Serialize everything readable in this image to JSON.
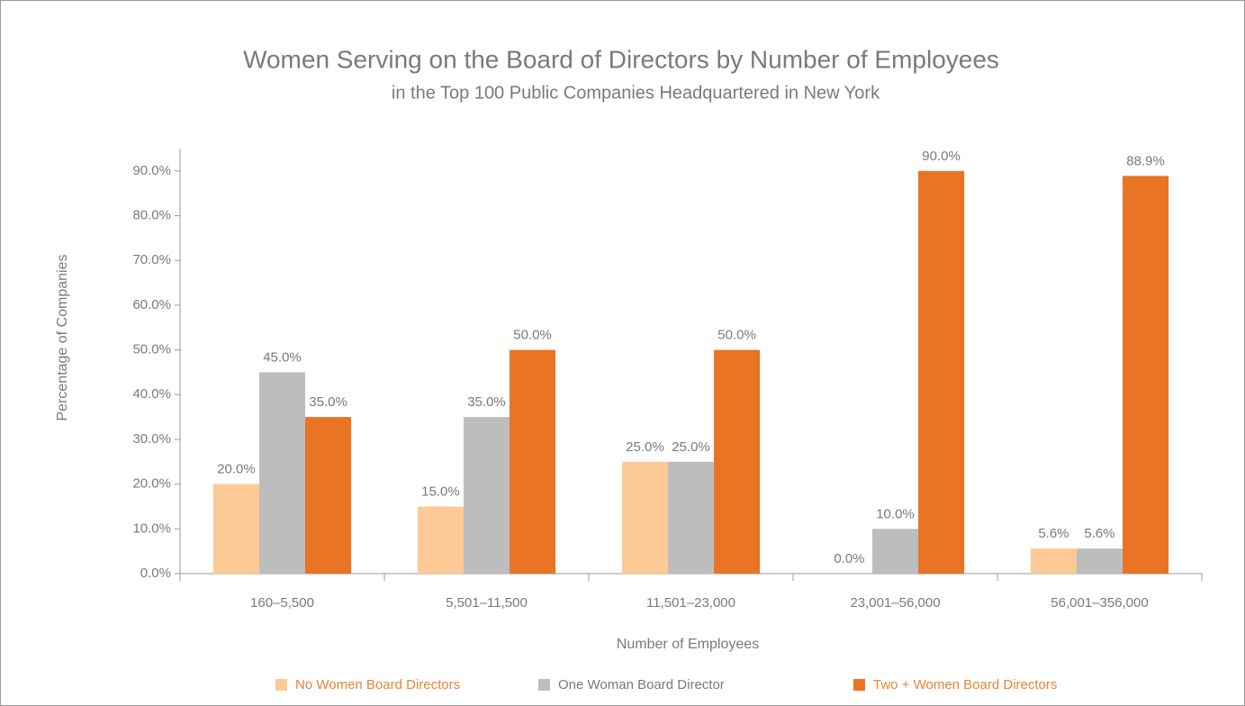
{
  "chart_data": {
    "type": "bar",
    "title": "Women Serving on the Board of Directors by Number of Employees",
    "subtitle": "in the Top 100 Public Companies Headquartered in New York",
    "x_label": "Number of Employees",
    "y_label": "Percentage of Companies",
    "categories": [
      "160–5,500",
      "5,501–11,500",
      "11,501–23,000",
      "23,001–56,000",
      "56,001–356,000"
    ],
    "series": [
      {
        "name": "No Women Board Directors",
        "color": "#fdca96",
        "values": [
          20,
          15,
          25,
          0,
          5.6
        ],
        "value_labels": [
          "20.0%",
          "15.0%",
          "25.0%",
          "0.0%",
          "5.6%"
        ]
      },
      {
        "name": "One Woman Board Director",
        "color": "#bdbdbd",
        "values": [
          45,
          35,
          25,
          10,
          5.6
        ],
        "value_labels": [
          "45.0%",
          "35.0%",
          "25.0%",
          "10.0%",
          "5.6%"
        ]
      },
      {
        "name": "Two + Women Board Directors",
        "color": "#e87424",
        "values": [
          35,
          50,
          50,
          90,
          88.9
        ],
        "value_labels": [
          "35.0%",
          "50.0%",
          "50.0%",
          "90.0%",
          "88.9%"
        ]
      }
    ],
    "ylim": [
      0,
      95
    ],
    "yticks": [
      {
        "value": 0,
        "label": "0.0%"
      },
      {
        "value": 10,
        "label": "10.0%"
      },
      {
        "value": 20,
        "label": "20.0%"
      },
      {
        "value": 30,
        "label": "30.0%"
      },
      {
        "value": 40,
        "label": "40.0%"
      },
      {
        "value": 50,
        "label": "50.0%"
      },
      {
        "value": 60,
        "label": "60.0%"
      },
      {
        "value": 70,
        "label": "70.0%"
      },
      {
        "value": 80,
        "label": "80.0%"
      },
      {
        "value": 90,
        "label": "90.0%"
      }
    ],
    "legend": "bottom"
  }
}
